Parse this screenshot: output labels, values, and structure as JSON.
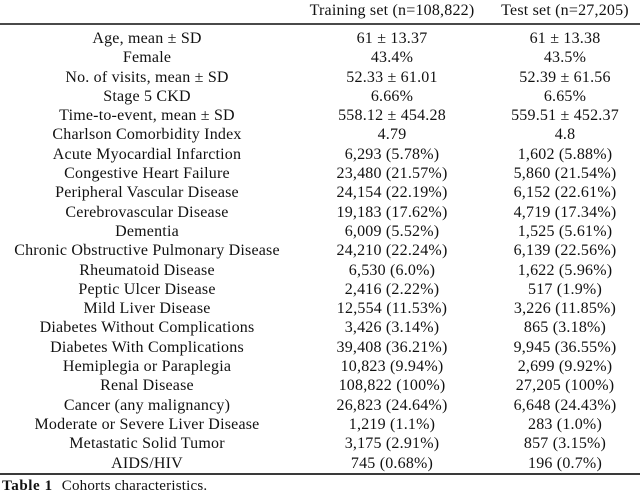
{
  "page": {
    "background": "#ffffff",
    "text_color": "#111111",
    "rule_color": "#3a3a3a"
  },
  "table": {
    "columns": [
      "",
      "Training set (n=108,822)",
      "Test set (n=27,205)"
    ],
    "rows": [
      {
        "label": "Age, mean ± SD",
        "training": "61 ± 13.37",
        "test": "61 ± 13.38"
      },
      {
        "label": "Female",
        "training": "43.4%",
        "test": "43.5%"
      },
      {
        "label": "No. of visits, mean ± SD",
        "training": "52.33 ± 61.01",
        "test": "52.39 ± 61.56"
      },
      {
        "label": "Stage 5 CKD",
        "training": "6.66%",
        "test": "6.65%"
      },
      {
        "label": "Time-to-event, mean ± SD",
        "training": "558.12 ± 454.28",
        "test": "559.51 ± 452.37"
      },
      {
        "label": "Charlson Comorbidity Index",
        "training": "4.79",
        "test": "4.8"
      },
      {
        "label": "Acute Myocardial Infarction",
        "training": "6,293 (5.78%)",
        "test": "1,602 (5.88%)"
      },
      {
        "label": "Congestive Heart Failure",
        "training": "23,480 (21.57%)",
        "test": "5,860 (21.54%)"
      },
      {
        "label": "Peripheral Vascular Disease",
        "training": "24,154 (22.19%)",
        "test": "6,152 (22.61%)"
      },
      {
        "label": "Cerebrovascular Disease",
        "training": "19,183 (17.62%)",
        "test": "4,719 (17.34%)"
      },
      {
        "label": "Dementia",
        "training": "6,009 (5.52%)",
        "test": "1,525 (5.61%)"
      },
      {
        "label": "Chronic Obstructive Pulmonary Disease",
        "training": "24,210 (22.24%)",
        "test": "6,139 (22.56%)"
      },
      {
        "label": "Rheumatoid Disease",
        "training": "6,530 (6.0%)",
        "test": "1,622 (5.96%)"
      },
      {
        "label": "Peptic Ulcer Disease",
        "training": "2,416 (2.22%)",
        "test": "517 (1.9%)"
      },
      {
        "label": "Mild Liver Disease",
        "training": "12,554 (11.53%)",
        "test": "3,226 (11.85%)"
      },
      {
        "label": "Diabetes Without Complications",
        "training": "3,426 (3.14%)",
        "test": "865 (3.18%)"
      },
      {
        "label": "Diabetes With Complications",
        "training": "39,408 (36.21%)",
        "test": "9,945 (36.55%)"
      },
      {
        "label": "Hemiplegia or Paraplegia",
        "training": "10,823 (9.94%)",
        "test": "2,699 (9.92%)"
      },
      {
        "label": "Renal Disease",
        "training": "108,822 (100%)",
        "test": "27,205 (100%)"
      },
      {
        "label": "Cancer (any malignancy)",
        "training": "26,823 (24.64%)",
        "test": "6,648 (24.43%)"
      },
      {
        "label": "Moderate or Severe Liver Disease",
        "training": "1,219 (1.1%)",
        "test": "283 (1.0%)"
      },
      {
        "label": "Metastatic Solid Tumor",
        "training": "3,175 (2.91%)",
        "test": "857 (3.15%)"
      },
      {
        "label": "AIDS/HIV",
        "training": "745 (0.68%)",
        "test": "196 (0.7%)"
      }
    ],
    "caption": {
      "label": "Table 1",
      "text": "Cohorts characteristics."
    }
  }
}
